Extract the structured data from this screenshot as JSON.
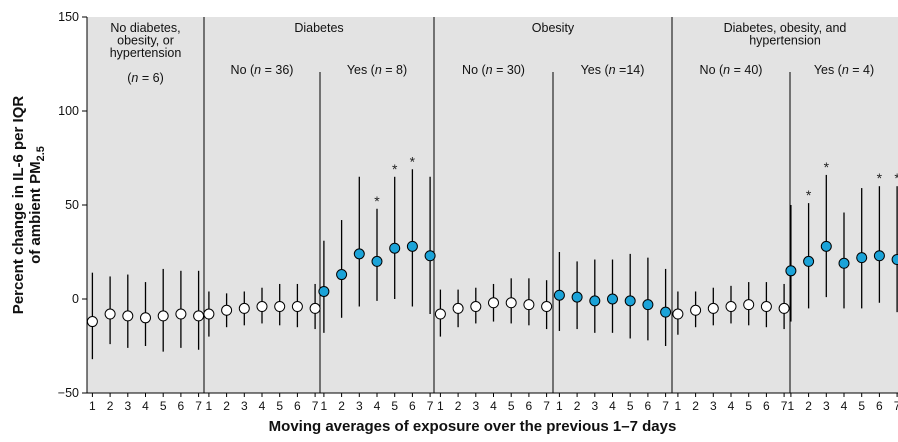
{
  "chart_data": {
    "type": "scatter",
    "ylabel": "Percent change in IL-6 per IQR",
    "ylabel2_prefix": "of ambient PM",
    "ylabel2_sub": "2.5",
    "xlabel": "Moving averages of exposure over the previous 1–7 days",
    "ylim": [
      -50,
      150
    ],
    "yticks": [
      "150",
      "100",
      "50",
      "0",
      "−50"
    ],
    "yticks_values": [
      150,
      100,
      50,
      0,
      -50
    ],
    "day_ticks": [
      "1",
      "2",
      "3",
      "4",
      "5",
      "6",
      "7"
    ],
    "colors": {
      "panel": "#e3e3e3",
      "yes_marker": "#1ba3d8",
      "no_marker": "#ffffff",
      "line": "#000000"
    },
    "groups": [
      {
        "title": [
          "No diabetes,",
          "obesity, or",
          "hypertension"
        ],
        "subgroups": [
          {
            "name": "(n = 6)",
            "label_html": "",
            "label_lines": [],
            "n_label": [
              "(",
              "n",
              " = 6)"
            ],
            "marker": "no_marker",
            "points": [
              {
                "day": 1,
                "y": -12,
                "lo": -32,
                "hi": 14,
                "sig": false
              },
              {
                "day": 2,
                "y": -8,
                "lo": -24,
                "hi": 12,
                "sig": false
              },
              {
                "day": 3,
                "y": -9,
                "lo": -26,
                "hi": 13,
                "sig": false
              },
              {
                "day": 4,
                "y": -10,
                "lo": -25,
                "hi": 9,
                "sig": false
              },
              {
                "day": 5,
                "y": -9,
                "lo": -28,
                "hi": 16,
                "sig": false
              },
              {
                "day": 6,
                "y": -8,
                "lo": -26,
                "hi": 15,
                "sig": false
              },
              {
                "day": 7,
                "y": -9,
                "lo": -27,
                "hi": 15,
                "sig": false
              }
            ]
          }
        ]
      },
      {
        "title": [
          "Diabetes"
        ],
        "subgroups": [
          {
            "name": "No (n = 36)",
            "label_parts": [
              "No (",
              "n",
              " = 36)"
            ],
            "marker": "no_marker",
            "points": [
              {
                "day": 1,
                "y": -8,
                "lo": -20,
                "hi": 4,
                "sig": false
              },
              {
                "day": 2,
                "y": -6,
                "lo": -15,
                "hi": 3,
                "sig": false
              },
              {
                "day": 3,
                "y": -5,
                "lo": -14,
                "hi": 4,
                "sig": false
              },
              {
                "day": 4,
                "y": -4,
                "lo": -13,
                "hi": 6,
                "sig": false
              },
              {
                "day": 5,
                "y": -4,
                "lo": -14,
                "hi": 8,
                "sig": false
              },
              {
                "day": 6,
                "y": -4,
                "lo": -15,
                "hi": 8,
                "sig": false
              },
              {
                "day": 7,
                "y": -5,
                "lo": -16,
                "hi": 8,
                "sig": false
              }
            ]
          },
          {
            "name": "Yes (n = 8)",
            "label_parts": [
              "Yes (",
              "n",
              " = 8)"
            ],
            "marker": "yes_marker",
            "points": [
              {
                "day": 1,
                "y": 4,
                "lo": -18,
                "hi": 31,
                "sig": false
              },
              {
                "day": 2,
                "y": 13,
                "lo": -10,
                "hi": 42,
                "sig": false
              },
              {
                "day": 3,
                "y": 24,
                "lo": -4,
                "hi": 65,
                "sig": false
              },
              {
                "day": 4,
                "y": 20,
                "lo": -1,
                "hi": 48,
                "sig": true
              },
              {
                "day": 5,
                "y": 27,
                "lo": 0,
                "hi": 65,
                "sig": true
              },
              {
                "day": 6,
                "y": 28,
                "lo": -4,
                "hi": 69,
                "sig": true
              },
              {
                "day": 7,
                "y": 23,
                "lo": -8,
                "hi": 65,
                "sig": false
              }
            ]
          }
        ]
      },
      {
        "title": [
          "Obesity"
        ],
        "subgroups": [
          {
            "name": "No (n = 30)",
            "label_parts": [
              "No (",
              "n",
              " = 30)"
            ],
            "marker": "no_marker",
            "points": [
              {
                "day": 1,
                "y": -8,
                "lo": -20,
                "hi": 5,
                "sig": false
              },
              {
                "day": 2,
                "y": -5,
                "lo": -15,
                "hi": 5,
                "sig": false
              },
              {
                "day": 3,
                "y": -4,
                "lo": -13,
                "hi": 6,
                "sig": false
              },
              {
                "day": 4,
                "y": -2,
                "lo": -12,
                "hi": 8,
                "sig": false
              },
              {
                "day": 5,
                "y": -2,
                "lo": -13,
                "hi": 11,
                "sig": false
              },
              {
                "day": 6,
                "y": -3,
                "lo": -14,
                "hi": 11,
                "sig": false
              },
              {
                "day": 7,
                "y": -4,
                "lo": -16,
                "hi": 10,
                "sig": false
              }
            ]
          },
          {
            "name": "Yes (n =14)",
            "label_parts": [
              "Yes (",
              "n",
              " =14)"
            ],
            "marker": "yes_marker",
            "points": [
              {
                "day": 1,
                "y": 2,
                "lo": -17,
                "hi": 25,
                "sig": false
              },
              {
                "day": 2,
                "y": 1,
                "lo": -16,
                "hi": 20,
                "sig": false
              },
              {
                "day": 3,
                "y": -1,
                "lo": -18,
                "hi": 21,
                "sig": false
              },
              {
                "day": 4,
                "y": 0,
                "lo": -18,
                "hi": 21,
                "sig": false
              },
              {
                "day": 5,
                "y": -1,
                "lo": -21,
                "hi": 24,
                "sig": false
              },
              {
                "day": 6,
                "y": -3,
                "lo": -22,
                "hi": 22,
                "sig": false
              },
              {
                "day": 7,
                "y": -7,
                "lo": -25,
                "hi": 16,
                "sig": false
              }
            ]
          }
        ]
      },
      {
        "title": [
          "Diabetes, obesity, and",
          "hypertension"
        ],
        "subgroups": [
          {
            "name": "No (n = 40)",
            "label_parts": [
              "No (",
              "n",
              " = 40)"
            ],
            "marker": "no_marker",
            "points": [
              {
                "day": 1,
                "y": -8,
                "lo": -19,
                "hi": 4,
                "sig": false
              },
              {
                "day": 2,
                "y": -6,
                "lo": -15,
                "hi": 4,
                "sig": false
              },
              {
                "day": 3,
                "y": -5,
                "lo": -14,
                "hi": 6,
                "sig": false
              },
              {
                "day": 4,
                "y": -4,
                "lo": -13,
                "hi": 7,
                "sig": false
              },
              {
                "day": 5,
                "y": -3,
                "lo": -14,
                "hi": 9,
                "sig": false
              },
              {
                "day": 6,
                "y": -4,
                "lo": -15,
                "hi": 9,
                "sig": false
              },
              {
                "day": 7,
                "y": -5,
                "lo": -16,
                "hi": 8,
                "sig": false
              }
            ]
          },
          {
            "name": "Yes (n = 4)",
            "label_parts": [
              "Yes (",
              "n",
              " = 4)"
            ],
            "marker": "yes_marker",
            "points": [
              {
                "day": 1,
                "y": 15,
                "lo": -12,
                "hi": 50,
                "sig": false
              },
              {
                "day": 2,
                "y": 20,
                "lo": -5,
                "hi": 51,
                "sig": true
              },
              {
                "day": 3,
                "y": 28,
                "lo": 1,
                "hi": 66,
                "sig": true
              },
              {
                "day": 4,
                "y": 19,
                "lo": -5,
                "hi": 46,
                "sig": false
              },
              {
                "day": 5,
                "y": 22,
                "lo": -5,
                "hi": 59,
                "sig": false
              },
              {
                "day": 6,
                "y": 23,
                "lo": -2,
                "hi": 60,
                "sig": true
              },
              {
                "day": 7,
                "y": 21,
                "lo": -7,
                "hi": 60,
                "sig": true
              }
            ]
          }
        ]
      }
    ],
    "sig_marker": "*"
  }
}
